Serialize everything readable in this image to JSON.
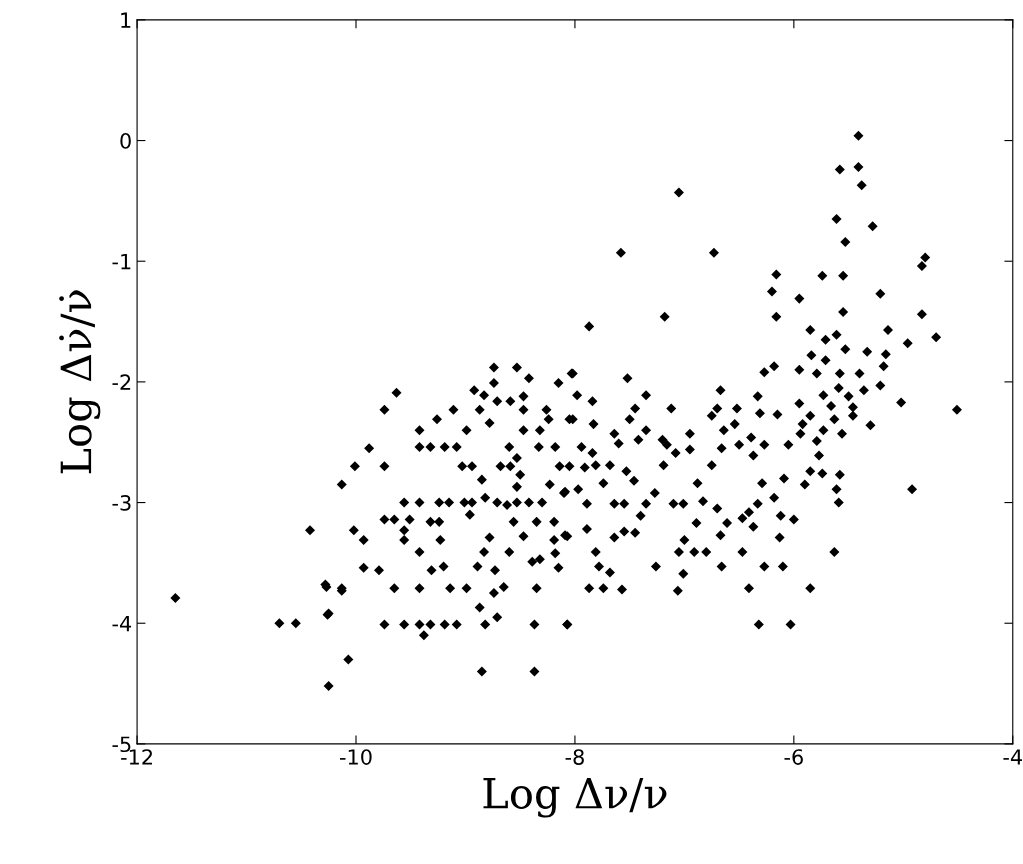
{
  "chart_data": {
    "type": "scatter",
    "xlabel": "Log Δν/ν",
    "ylabel": "Log Δν̇/ν̇",
    "xlim": [
      -12,
      -4
    ],
    "ylim": [
      -5,
      1
    ],
    "xticks": [
      -12,
      -10,
      -8,
      -6,
      -4
    ],
    "yticks": [
      -5,
      -4,
      -3,
      -2,
      -1,
      0,
      1
    ],
    "grid": false,
    "marker": "diamond",
    "series": [
      {
        "color": "#000000",
        "x": [
          -11.65,
          -10.7,
          -10.55,
          -10.42,
          -10.27,
          -10.25,
          -10.25,
          -10.07,
          -10.13,
          -9.63,
          -9.74,
          -9.88,
          -10.01,
          -9.74,
          -10.13,
          -10.02,
          -9.93,
          -9.93,
          -9.79,
          -10.28,
          -10.13,
          -10.26,
          -9.65,
          -9.42,
          -9.14,
          -8.99,
          -9.74,
          -9.56,
          -9.42,
          -9.32,
          -9.19,
          -9.08,
          -9.38,
          -8.85,
          -8.37,
          -8.82,
          -8.37,
          -8.07,
          -8.87,
          -8.71,
          -8.74,
          -8.65,
          -8.35,
          -8.89,
          -8.73,
          -8.83,
          -8.78,
          -8.6,
          -9.31,
          -9.2,
          -9.42,
          -9.23,
          -9.56,
          -9.56,
          -9.74,
          -9.65,
          -9.51,
          -9.32,
          -9.24,
          -9.56,
          -9.42,
          -9.24,
          -9.15,
          -9.01,
          -8.94,
          -8.82,
          -8.71,
          -8.62,
          -8.53,
          -8.42,
          -8.3,
          -8.96,
          -8.56,
          -8.35,
          -8.19,
          -8.47,
          -8.19,
          -8.07,
          -8.18,
          -8.39,
          -8.32,
          -8.15,
          -8.23,
          -8.09,
          -9.03,
          -8.94,
          -8.68,
          -8.59,
          -8.53,
          -8.5,
          -8.53,
          -8.14,
          -8.05,
          -8.85,
          -9.42,
          -9.32,
          -9.19,
          -9.08,
          -8.6,
          -8.33,
          -8.18,
          -9.42,
          -9.26,
          -8.99,
          -8.78,
          -8.47,
          -8.32,
          -8.24,
          -8.05,
          -9.11,
          -8.87,
          -8.47,
          -8.26,
          -8.92,
          -8.83,
          -8.74,
          -8.71,
          -8.59,
          -8.47,
          -8.74,
          -8.53,
          -8.42,
          -8.15,
          -8.03,
          -5.41,
          -5.58,
          -5.41,
          -5.38,
          -7.05,
          -5.61,
          -5.28,
          -5.53,
          -7.58,
          -6.73,
          -4.8,
          -4.83,
          -6.16,
          -5.74,
          -5.55,
          -6.2,
          -5.95,
          -5.21,
          -7.18,
          -6.16,
          -5.55,
          -4.83,
          -7.87,
          -5.85,
          -5.14,
          -4.96,
          -4.7,
          -5.71,
          -5.61,
          -5.53,
          -5.16,
          -5.33,
          -5.84,
          -5.71,
          -5.18,
          -6.18,
          -6.27,
          -5.95,
          -5.79,
          -5.58,
          -5.4,
          -5.21,
          -5.59,
          -5.36,
          -5.73,
          -5.5,
          -5.95,
          -5.02,
          -4.51,
          -5.66,
          -5.46,
          -5.85,
          -5.63,
          -5.46,
          -5.3,
          -5.92,
          -5.73,
          -5.56,
          -5.94,
          -5.79,
          -5.77,
          -5.85,
          -5.74,
          -5.58,
          -4.92,
          -5.61,
          -5.59,
          -5.63,
          -5.85,
          -6.03,
          -6.32,
          -5.9,
          -6.09,
          -6.29,
          -6.18,
          -6.12,
          -6.0,
          -6.13,
          -6.27,
          -6.1,
          -6.41,
          -6.37,
          -6.47,
          -6.41,
          -6.33,
          -6.47,
          -6.66,
          -6.67,
          -6.61,
          -6.7,
          -6.83,
          -6.88,
          -6.75,
          -6.89,
          -7.0,
          -7.05,
          -6.91,
          -6.8,
          -7.01,
          -7.06,
          -7.26,
          -7.1,
          -7.01,
          -6.75,
          -6.67,
          -6.7,
          -6.52,
          -6.54,
          -6.64,
          -6.39,
          -6.66,
          -6.5,
          -6.37,
          -6.27,
          -6.33,
          -6.31,
          -6.15,
          -6.05,
          -7.35,
          -7.12,
          -7.52,
          -8.02,
          -7.45,
          -7.5,
          -7.35,
          -7.64,
          -7.6,
          -7.42,
          -7.2,
          -7.16,
          -6.95,
          -6.95,
          -7.08,
          -7.19,
          -7.83,
          -7.98,
          -7.84,
          -8.02,
          -7.94,
          -7.84,
          -7.81,
          -7.91,
          -7.68,
          -7.53,
          -7.46,
          -7.74,
          -7.97,
          -8.1,
          -7.89,
          -7.64,
          -7.55,
          -7.27,
          -7.35,
          -7.4,
          -7.89,
          -7.55,
          -7.45,
          -7.64,
          -7.81,
          -7.78,
          -7.68,
          -7.87,
          -7.74,
          -7.57,
          -8.07,
          -8.09
        ],
        "values": [
          -3.79,
          -4.0,
          -4.0,
          -3.23,
          -3.7,
          -3.92,
          -4.52,
          -4.3,
          -3.73,
          -2.09,
          -2.23,
          -2.55,
          -2.7,
          -2.7,
          -2.85,
          -3.23,
          -3.31,
          -3.54,
          -3.56,
          -3.68,
          -3.71,
          -3.93,
          -3.71,
          -3.71,
          -3.71,
          -3.71,
          -4.01,
          -4.01,
          -4.01,
          -4.01,
          -4.01,
          -4.01,
          -4.1,
          -4.4,
          -4.4,
          -4.01,
          -4.01,
          -4.01,
          -3.87,
          -3.95,
          -3.75,
          -3.7,
          -3.71,
          -3.53,
          -3.56,
          -3.41,
          -3.29,
          -3.41,
          -3.56,
          -3.53,
          -3.41,
          -3.31,
          -3.31,
          -3.23,
          -3.14,
          -3.14,
          -3.14,
          -3.16,
          -3.16,
          -3.0,
          -3.0,
          -3.0,
          -3.0,
          -3.0,
          -3.0,
          -2.96,
          -3.0,
          -3.02,
          -3.0,
          -3.0,
          -3.0,
          -3.1,
          -3.16,
          -3.16,
          -3.16,
          -3.28,
          -3.31,
          -3.28,
          -3.42,
          -3.49,
          -3.47,
          -3.54,
          -2.85,
          -2.91,
          -2.7,
          -2.7,
          -2.7,
          -2.7,
          -2.63,
          -2.77,
          -2.87,
          -2.7,
          -2.7,
          -2.81,
          -2.54,
          -2.54,
          -2.54,
          -2.54,
          -2.54,
          -2.54,
          -2.54,
          -2.4,
          -2.31,
          -2.4,
          -2.34,
          -2.4,
          -2.4,
          -2.31,
          -2.31,
          -2.23,
          -2.23,
          -2.23,
          -2.23,
          -2.07,
          -2.11,
          -2.01,
          -2.16,
          -2.16,
          -2.12,
          -1.88,
          -1.88,
          -1.97,
          -2.01,
          -1.93,
          0.04,
          -0.24,
          -0.22,
          -0.37,
          -0.43,
          -0.65,
          -0.71,
          -0.84,
          -0.93,
          -0.93,
          -0.97,
          -1.04,
          -1.11,
          -1.12,
          -1.12,
          -1.25,
          -1.31,
          -1.27,
          -1.46,
          -1.46,
          -1.42,
          -1.44,
          -1.54,
          -1.57,
          -1.57,
          -1.68,
          -1.63,
          -1.65,
          -1.61,
          -1.73,
          -1.77,
          -1.75,
          -1.78,
          -1.82,
          -1.87,
          -1.87,
          -1.92,
          -1.9,
          -1.93,
          -1.93,
          -1.93,
          -2.03,
          -2.05,
          -2.07,
          -2.11,
          -2.12,
          -2.18,
          -2.17,
          -2.23,
          -2.2,
          -2.21,
          -2.28,
          -2.31,
          -2.28,
          -2.36,
          -2.35,
          -2.4,
          -2.43,
          -2.43,
          -2.49,
          -2.61,
          -2.74,
          -2.76,
          -2.77,
          -2.89,
          -2.89,
          -3.0,
          -3.41,
          -3.71,
          -4.01,
          -4.01,
          -2.85,
          -2.8,
          -2.84,
          -2.96,
          -3.11,
          -3.14,
          -3.29,
          -3.53,
          -3.53,
          -3.71,
          -3.2,
          -3.13,
          -3.08,
          -3.01,
          -3.41,
          -3.53,
          -3.27,
          -3.17,
          -3.05,
          -2.99,
          -2.84,
          -2.69,
          -3.17,
          -3.31,
          -3.41,
          -3.41,
          -3.41,
          -3.59,
          -3.73,
          -3.53,
          -3.01,
          -3.01,
          -2.28,
          -2.07,
          -2.22,
          -2.22,
          -2.35,
          -2.4,
          -2.46,
          -2.55,
          -2.52,
          -2.61,
          -2.52,
          -2.12,
          -2.26,
          -2.27,
          -2.52,
          -2.11,
          -2.22,
          -1.97,
          -1.93,
          -2.22,
          -2.31,
          -2.4,
          -2.43,
          -2.51,
          -2.48,
          -2.48,
          -2.52,
          -2.43,
          -2.56,
          -2.59,
          -2.69,
          -2.35,
          -2.11,
          -2.16,
          -2.31,
          -2.54,
          -2.59,
          -2.69,
          -2.71,
          -2.69,
          -2.74,
          -2.82,
          -2.84,
          -2.89,
          -2.92,
          -3.01,
          -3.01,
          -3.01,
          -2.92,
          -3.01,
          -3.11,
          -3.22,
          -3.24,
          -3.25,
          -3.29,
          -3.41,
          -3.53,
          -3.58,
          -3.71,
          -3.71,
          -3.72,
          -4.01,
          -3.27
        ]
      }
    ]
  }
}
